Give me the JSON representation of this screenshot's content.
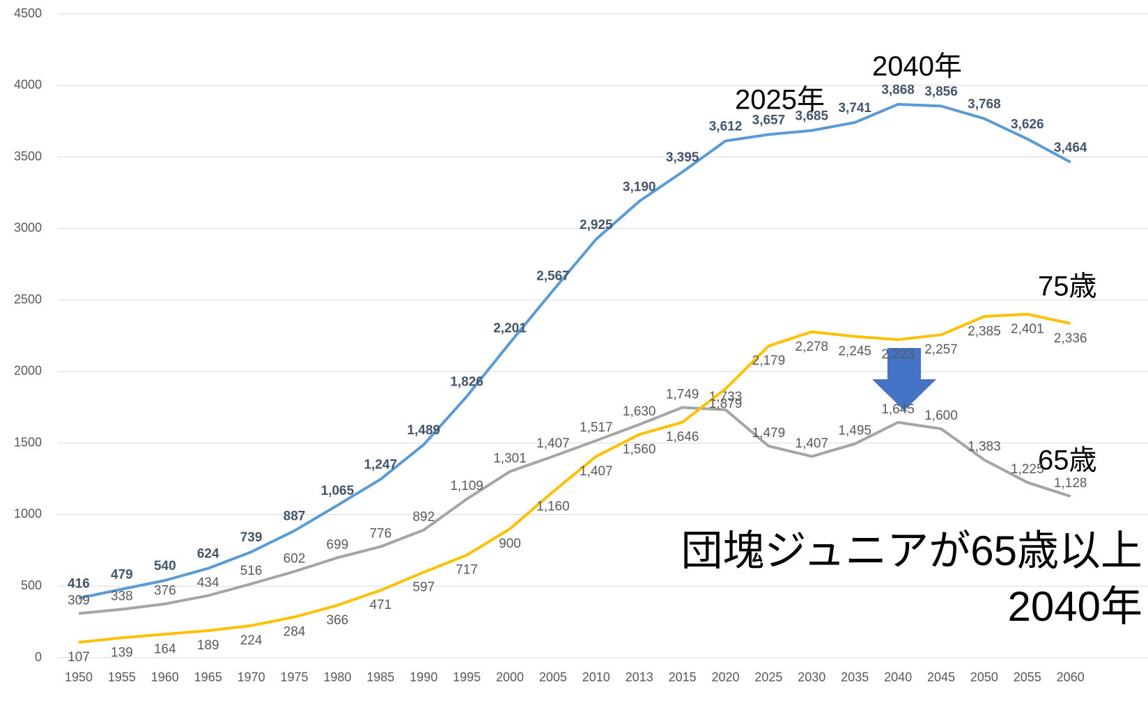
{
  "chart_data": {
    "type": "line",
    "categories": [
      "1950",
      "1955",
      "1960",
      "1965",
      "1970",
      "1975",
      "1980",
      "1985",
      "1990",
      "1995",
      "2000",
      "2005",
      "2010",
      "2013",
      "2015",
      "2020",
      "2025",
      "2030",
      "2035",
      "2040",
      "2045",
      "2050",
      "2055",
      "2060"
    ],
    "series": [
      {
        "color": "#5b9bd5",
        "values": [
          416,
          479,
          540,
          624,
          739,
          887,
          1065,
          1247,
          1489,
          1826,
          2201,
          2567,
          2925,
          3190,
          3395,
          3612,
          3657,
          3685,
          3741,
          3868,
          3856,
          3768,
          3626,
          3464
        ],
        "value_labels": [
          "416",
          "479",
          "540",
          "624",
          "739",
          "887",
          "1,065",
          "1,247",
          "1,489",
          "1,826",
          "2,201",
          "2,567",
          "2,925",
          "3,190",
          "3,395",
          "3,612",
          "3,657",
          "3,685",
          "3,741",
          "3,868",
          "3,856",
          "3,768",
          "3,626",
          "3,464"
        ]
      },
      {
        "color": "#a5a5a5",
        "values": [
          309,
          338,
          376,
          434,
          516,
          602,
          699,
          776,
          892,
          1109,
          1301,
          1407,
          1517,
          1630,
          1749,
          1733,
          1479,
          1407,
          1495,
          1645,
          1600,
          1383,
          1225,
          1128
        ],
        "value_labels": [
          "309",
          "338",
          "376",
          "434",
          "516",
          "602",
          "699",
          "776",
          "892",
          "1,109",
          "1,301",
          "1,407",
          "1,517",
          "1,630",
          "1,749",
          "1,733",
          "1,479",
          "1,407",
          "1,495",
          "1,645",
          "1,600",
          "1,383",
          "1,225",
          "1,128"
        ]
      },
      {
        "color": "#ffc000",
        "values": [
          107,
          139,
          164,
          189,
          224,
          284,
          366,
          471,
          597,
          717,
          900,
          1160,
          1407,
          1560,
          1646,
          1879,
          2179,
          2278,
          2245,
          2223,
          2257,
          2385,
          2401,
          2336
        ],
        "value_labels": [
          "107",
          "139",
          "164",
          "189",
          "224",
          "284",
          "366",
          "471",
          "597",
          "717",
          "900",
          "1,160",
          "1,407",
          "1,560",
          "1,646",
          "1,879",
          "2,179",
          "2,278",
          "2,245",
          "2,223",
          "2,257",
          "2,385",
          "2,401",
          "2,336"
        ]
      }
    ],
    "ylim": [
      0,
      4500
    ],
    "yticks": [
      0,
      500,
      1000,
      1500,
      2000,
      2500,
      3000,
      3500,
      4000,
      4500
    ],
    "grid": true,
    "annotations": [
      "2025年",
      "2040年",
      "75歳",
      "65歳",
      "団塊ジュニアが65歳以上",
      "2040年"
    ]
  }
}
